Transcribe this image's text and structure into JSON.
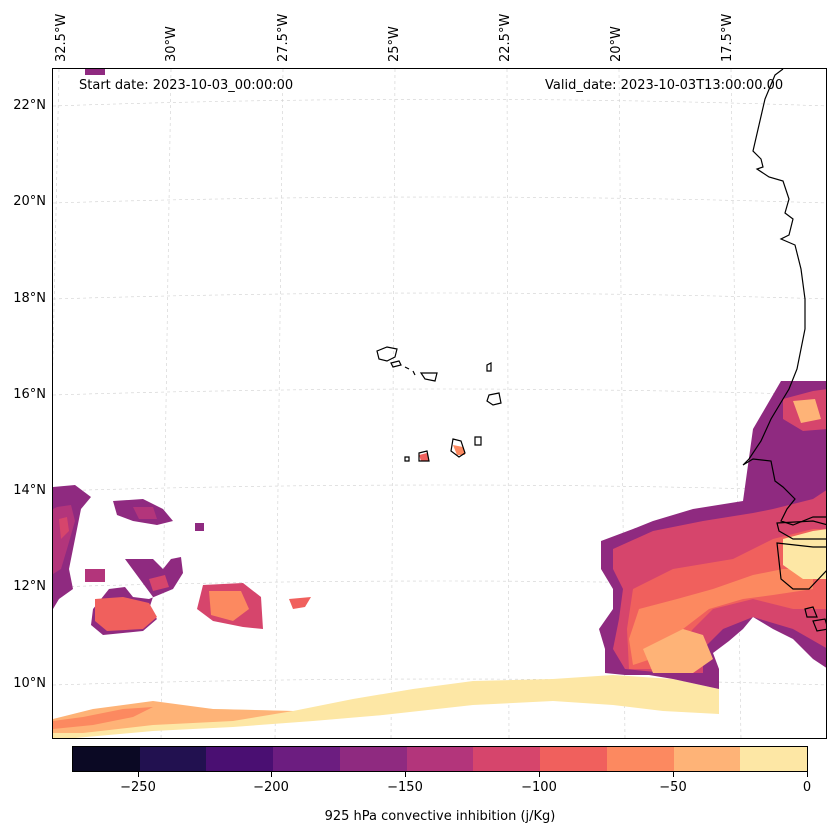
{
  "map": {
    "start_date": "Start date: 2023-10-03_00:00:00",
    "valid_date": "Valid_date: 2023-10-03T13:00:00.00",
    "lat_labels": [
      "22°N",
      "20°N",
      "18°N",
      "16°N",
      "14°N",
      "12°N",
      "10°N"
    ],
    "lon_labels": [
      "32.5°W",
      "30°W",
      "27.5°W",
      "25°W",
      "22.5°W",
      "20°W",
      "17.5°W"
    ],
    "icons": [
      "coastline-icon",
      "island-icon",
      "cin-shading"
    ]
  },
  "colorbar": {
    "title": "925 hPa convective inhibition (j/Kg)",
    "tick_labels": [
      "−250",
      "−200",
      "−150",
      "−100",
      "−50",
      "0"
    ],
    "bounds": [
      -275,
      0
    ],
    "colors": [
      "#0b0924",
      "#221150",
      "#4a0f72",
      "#6c1d80",
      "#8f2a80",
      "#b3357b",
      "#d6456c",
      "#f0605d",
      "#fc8960",
      "#feb377",
      "#fde7a5"
    ]
  }
}
